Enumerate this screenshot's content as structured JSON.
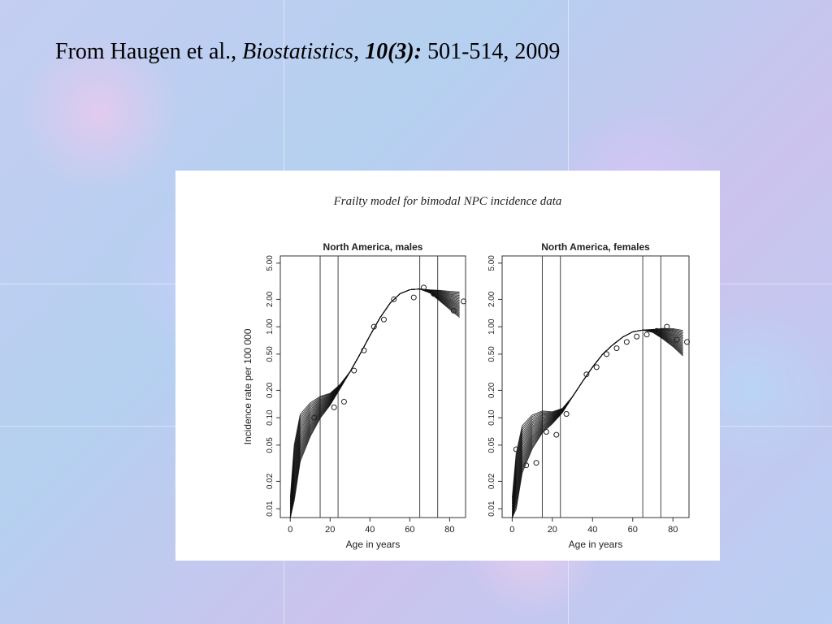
{
  "slide": {
    "citation": {
      "authors": "From Haugen et al.,",
      "journal": "Biostatistics,",
      "volume": "10(3):",
      "pages": "501-514, 2009"
    }
  },
  "chart_data": {
    "title": "Frailty model for bimodal NPC incidence data",
    "panels": [
      {
        "type": "line",
        "title": "North America, males",
        "xlabel": "Age in years",
        "ylabel": "Incidence rate per 100 000",
        "xlim": [
          -5,
          88
        ],
        "ylim": [
          0.008,
          6
        ],
        "y_scale": "log",
        "x_ticks": [
          0,
          20,
          40,
          60,
          80
        ],
        "y_ticks": [
          "0.01",
          "0.02",
          "0.05",
          "0.10",
          "0.20",
          "0.50",
          "1.00",
          "2.00",
          "5.00"
        ],
        "vlines": [
          15,
          24,
          65,
          74
        ],
        "fitted_curve": {
          "x": [
            0,
            2,
            5,
            10,
            15,
            20,
            25,
            30,
            35,
            40,
            45,
            50,
            55,
            60,
            65,
            70,
            75,
            80,
            85
          ],
          "y": [
            0.006,
            0.025,
            0.06,
            0.095,
            0.13,
            0.16,
            0.22,
            0.32,
            0.5,
            0.8,
            1.25,
            1.8,
            2.3,
            2.55,
            2.6,
            2.45,
            2.2,
            1.95,
            1.75
          ]
        },
        "observed": {
          "x": [
            12,
            22,
            27,
            32,
            37,
            42,
            47,
            52,
            62,
            67,
            72,
            82,
            87
          ],
          "y": [
            0.1,
            0.13,
            0.15,
            0.33,
            0.55,
            1.0,
            1.2,
            2.0,
            2.1,
            2.7,
            2.3,
            1.5,
            1.9
          ]
        }
      },
      {
        "type": "line",
        "title": "North America, females",
        "xlabel": "Age in years",
        "ylabel": "",
        "xlim": [
          -5,
          88
        ],
        "ylim": [
          0.008,
          6
        ],
        "y_scale": "log",
        "x_ticks": [
          0,
          20,
          40,
          60,
          80
        ],
        "y_ticks": [
          "0.01",
          "0.02",
          "0.05",
          "0.10",
          "0.20",
          "0.50",
          "1.00",
          "2.00",
          "5.00"
        ],
        "vlines": [
          15,
          24,
          65,
          74
        ],
        "fitted_curve": {
          "x": [
            0,
            2,
            5,
            10,
            15,
            20,
            25,
            30,
            35,
            40,
            45,
            50,
            55,
            60,
            65,
            70,
            75,
            80,
            85
          ],
          "y": [
            0.006,
            0.02,
            0.045,
            0.07,
            0.09,
            0.1,
            0.12,
            0.17,
            0.25,
            0.36,
            0.5,
            0.63,
            0.77,
            0.88,
            0.92,
            0.9,
            0.84,
            0.76,
            0.66
          ]
        },
        "observed": {
          "x": [
            2,
            7,
            12,
            17,
            22,
            27,
            37,
            42,
            47,
            52,
            57,
            62,
            67,
            72,
            77,
            82,
            87
          ],
          "y": [
            0.045,
            0.03,
            0.032,
            0.07,
            0.065,
            0.11,
            0.3,
            0.36,
            0.5,
            0.58,
            0.68,
            0.78,
            0.82,
            0.9,
            1.0,
            0.72,
            0.68
          ]
        }
      }
    ]
  }
}
